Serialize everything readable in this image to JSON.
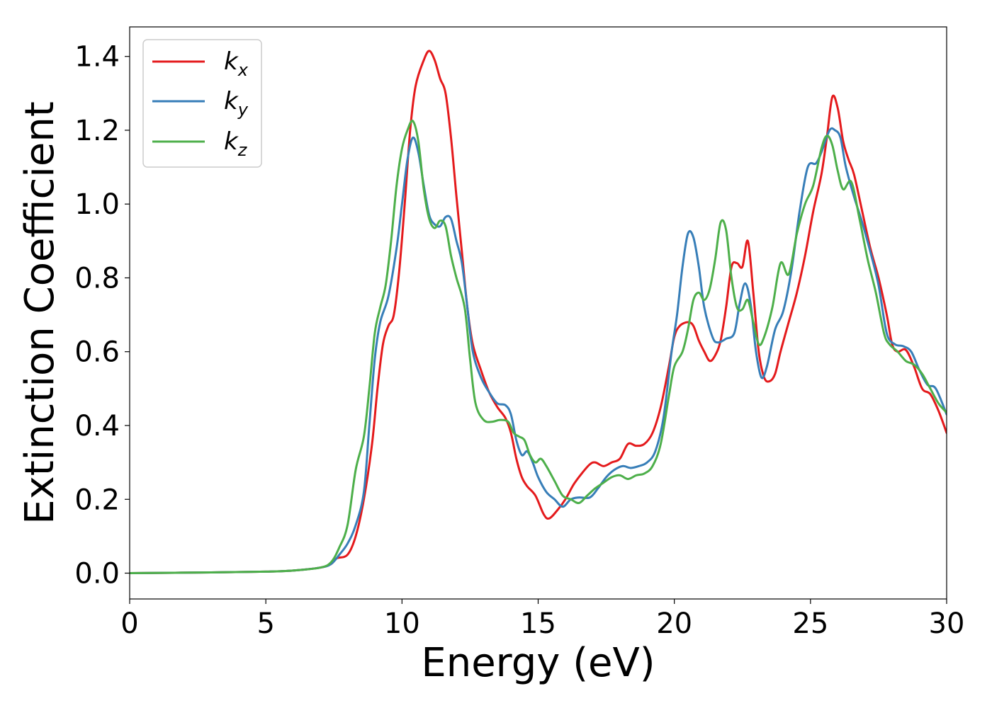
{
  "chart_data": {
    "type": "line",
    "title": "",
    "xlabel": "Energy (eV)",
    "ylabel": "Extinction Coefficient",
    "xlim": [
      0,
      30
    ],
    "ylim": [
      -0.07,
      1.48
    ],
    "xticks": [
      0,
      5,
      10,
      15,
      20,
      25,
      30
    ],
    "yticks": [
      0.0,
      0.2,
      0.4,
      0.6,
      0.8,
      1.0,
      1.2,
      1.4
    ],
    "xtick_labels": [
      "0",
      "5",
      "10",
      "15",
      "20",
      "25",
      "30"
    ],
    "ytick_labels": [
      "0.0",
      "0.2",
      "0.4",
      "0.6",
      "0.8",
      "1.0",
      "1.2",
      "1.4"
    ],
    "grid": false,
    "legend_position": "top-left",
    "series": [
      {
        "name": "k_x",
        "label_base": "k",
        "label_sub": "x",
        "color": "#e41a1c",
        "points": [
          [
            0,
            0
          ],
          [
            3,
            0.002
          ],
          [
            5,
            0.004
          ],
          [
            6,
            0.007
          ],
          [
            7,
            0.015
          ],
          [
            7.4,
            0.025
          ],
          [
            7.6,
            0.04
          ],
          [
            8.0,
            0.05
          ],
          [
            8.3,
            0.1
          ],
          [
            8.6,
            0.2
          ],
          [
            8.9,
            0.35
          ],
          [
            9.1,
            0.5
          ],
          [
            9.3,
            0.62
          ],
          [
            9.5,
            0.67
          ],
          [
            9.7,
            0.7
          ],
          [
            9.9,
            0.82
          ],
          [
            10.1,
            1.0
          ],
          [
            10.3,
            1.2
          ],
          [
            10.5,
            1.32
          ],
          [
            10.8,
            1.39
          ],
          [
            11.0,
            1.415
          ],
          [
            11.2,
            1.39
          ],
          [
            11.4,
            1.34
          ],
          [
            11.6,
            1.3
          ],
          [
            11.8,
            1.18
          ],
          [
            12.0,
            1.02
          ],
          [
            12.2,
            0.87
          ],
          [
            12.4,
            0.72
          ],
          [
            12.6,
            0.62
          ],
          [
            12.9,
            0.55
          ],
          [
            13.2,
            0.49
          ],
          [
            13.5,
            0.45
          ],
          [
            13.8,
            0.42
          ],
          [
            14.0,
            0.38
          ],
          [
            14.2,
            0.31
          ],
          [
            14.4,
            0.26
          ],
          [
            14.6,
            0.235
          ],
          [
            14.9,
            0.21
          ],
          [
            15.2,
            0.16
          ],
          [
            15.4,
            0.148
          ],
          [
            15.7,
            0.17
          ],
          [
            16.0,
            0.2
          ],
          [
            16.3,
            0.24
          ],
          [
            16.6,
            0.27
          ],
          [
            16.9,
            0.295
          ],
          [
            17.1,
            0.3
          ],
          [
            17.4,
            0.29
          ],
          [
            17.7,
            0.3
          ],
          [
            18.0,
            0.31
          ],
          [
            18.3,
            0.35
          ],
          [
            18.6,
            0.345
          ],
          [
            18.9,
            0.35
          ],
          [
            19.2,
            0.38
          ],
          [
            19.5,
            0.45
          ],
          [
            19.8,
            0.56
          ],
          [
            20.0,
            0.64
          ],
          [
            20.2,
            0.67
          ],
          [
            20.5,
            0.68
          ],
          [
            20.7,
            0.67
          ],
          [
            20.9,
            0.63
          ],
          [
            21.1,
            0.6
          ],
          [
            21.3,
            0.575
          ],
          [
            21.5,
            0.59
          ],
          [
            21.7,
            0.63
          ],
          [
            21.9,
            0.72
          ],
          [
            22.1,
            0.83
          ],
          [
            22.3,
            0.84
          ],
          [
            22.5,
            0.83
          ],
          [
            22.7,
            0.9
          ],
          [
            22.9,
            0.76
          ],
          [
            23.1,
            0.6
          ],
          [
            23.3,
            0.53
          ],
          [
            23.5,
            0.52
          ],
          [
            23.7,
            0.54
          ],
          [
            23.9,
            0.6
          ],
          [
            24.2,
            0.68
          ],
          [
            24.5,
            0.76
          ],
          [
            24.8,
            0.86
          ],
          [
            25.1,
            0.98
          ],
          [
            25.4,
            1.08
          ],
          [
            25.6,
            1.18
          ],
          [
            25.8,
            1.29
          ],
          [
            26.0,
            1.26
          ],
          [
            26.2,
            1.17
          ],
          [
            26.4,
            1.12
          ],
          [
            26.6,
            1.08
          ],
          [
            26.9,
            0.98
          ],
          [
            27.2,
            0.88
          ],
          [
            27.5,
            0.8
          ],
          [
            27.8,
            0.7
          ],
          [
            28.0,
            0.62
          ],
          [
            28.2,
            0.6
          ],
          [
            28.5,
            0.605
          ],
          [
            28.8,
            0.56
          ],
          [
            29.1,
            0.5
          ],
          [
            29.4,
            0.485
          ],
          [
            29.7,
            0.44
          ],
          [
            30.0,
            0.38
          ]
        ]
      },
      {
        "name": "k_y",
        "label_base": "k",
        "label_sub": "y",
        "color": "#377eb8",
        "points": [
          [
            0,
            0
          ],
          [
            3,
            0.002
          ],
          [
            5,
            0.004
          ],
          [
            6,
            0.007
          ],
          [
            7,
            0.015
          ],
          [
            7.4,
            0.025
          ],
          [
            7.7,
            0.05
          ],
          [
            8.0,
            0.08
          ],
          [
            8.3,
            0.13
          ],
          [
            8.6,
            0.22
          ],
          [
            8.8,
            0.4
          ],
          [
            9.0,
            0.58
          ],
          [
            9.2,
            0.68
          ],
          [
            9.5,
            0.75
          ],
          [
            9.8,
            0.88
          ],
          [
            10.0,
            1.0
          ],
          [
            10.2,
            1.12
          ],
          [
            10.4,
            1.18
          ],
          [
            10.6,
            1.14
          ],
          [
            10.8,
            1.05
          ],
          [
            11.0,
            0.97
          ],
          [
            11.2,
            0.945
          ],
          [
            11.4,
            0.94
          ],
          [
            11.6,
            0.965
          ],
          [
            11.8,
            0.96
          ],
          [
            12.0,
            0.9
          ],
          [
            12.2,
            0.84
          ],
          [
            12.4,
            0.72
          ],
          [
            12.6,
            0.6
          ],
          [
            12.9,
            0.53
          ],
          [
            13.2,
            0.49
          ],
          [
            13.5,
            0.46
          ],
          [
            13.8,
            0.455
          ],
          [
            14.0,
            0.43
          ],
          [
            14.2,
            0.36
          ],
          [
            14.4,
            0.32
          ],
          [
            14.6,
            0.33
          ],
          [
            14.8,
            0.3
          ],
          [
            15.0,
            0.26
          ],
          [
            15.3,
            0.22
          ],
          [
            15.6,
            0.2
          ],
          [
            15.9,
            0.18
          ],
          [
            16.2,
            0.2
          ],
          [
            16.5,
            0.205
          ],
          [
            16.9,
            0.205
          ],
          [
            17.2,
            0.23
          ],
          [
            17.5,
            0.26
          ],
          [
            17.8,
            0.28
          ],
          [
            18.1,
            0.29
          ],
          [
            18.4,
            0.285
          ],
          [
            18.7,
            0.29
          ],
          [
            19.0,
            0.3
          ],
          [
            19.3,
            0.33
          ],
          [
            19.6,
            0.42
          ],
          [
            19.9,
            0.6
          ],
          [
            20.1,
            0.7
          ],
          [
            20.3,
            0.83
          ],
          [
            20.5,
            0.92
          ],
          [
            20.7,
            0.91
          ],
          [
            20.9,
            0.83
          ],
          [
            21.1,
            0.72
          ],
          [
            21.4,
            0.64
          ],
          [
            21.6,
            0.625
          ],
          [
            21.9,
            0.635
          ],
          [
            22.2,
            0.65
          ],
          [
            22.4,
            0.73
          ],
          [
            22.6,
            0.785
          ],
          [
            22.8,
            0.73
          ],
          [
            23.0,
            0.6
          ],
          [
            23.2,
            0.53
          ],
          [
            23.4,
            0.56
          ],
          [
            23.7,
            0.66
          ],
          [
            24.0,
            0.71
          ],
          [
            24.3,
            0.82
          ],
          [
            24.6,
            0.98
          ],
          [
            24.9,
            1.1
          ],
          [
            25.2,
            1.11
          ],
          [
            25.4,
            1.14
          ],
          [
            25.7,
            1.2
          ],
          [
            25.9,
            1.2
          ],
          [
            26.1,
            1.18
          ],
          [
            26.3,
            1.1
          ],
          [
            26.6,
            1.02
          ],
          [
            26.9,
            0.95
          ],
          [
            27.2,
            0.87
          ],
          [
            27.5,
            0.78
          ],
          [
            27.8,
            0.65
          ],
          [
            28.1,
            0.62
          ],
          [
            28.4,
            0.615
          ],
          [
            28.7,
            0.6
          ],
          [
            29.0,
            0.55
          ],
          [
            29.3,
            0.51
          ],
          [
            29.6,
            0.5
          ],
          [
            30.0,
            0.43
          ]
        ]
      },
      {
        "name": "k_z",
        "label_base": "k",
        "label_sub": "z",
        "color": "#4daf4a",
        "points": [
          [
            0,
            0
          ],
          [
            3,
            0.002
          ],
          [
            5,
            0.004
          ],
          [
            6,
            0.007
          ],
          [
            7,
            0.015
          ],
          [
            7.4,
            0.03
          ],
          [
            7.7,
            0.07
          ],
          [
            8.0,
            0.13
          ],
          [
            8.3,
            0.28
          ],
          [
            8.6,
            0.37
          ],
          [
            8.8,
            0.5
          ],
          [
            9.0,
            0.65
          ],
          [
            9.2,
            0.72
          ],
          [
            9.4,
            0.78
          ],
          [
            9.6,
            0.9
          ],
          [
            9.8,
            1.05
          ],
          [
            10.0,
            1.15
          ],
          [
            10.2,
            1.2
          ],
          [
            10.4,
            1.225
          ],
          [
            10.6,
            1.17
          ],
          [
            10.8,
            1.04
          ],
          [
            11.0,
            0.96
          ],
          [
            11.2,
            0.935
          ],
          [
            11.4,
            0.955
          ],
          [
            11.6,
            0.94
          ],
          [
            11.8,
            0.86
          ],
          [
            12.0,
            0.8
          ],
          [
            12.3,
            0.72
          ],
          [
            12.5,
            0.58
          ],
          [
            12.7,
            0.46
          ],
          [
            13.0,
            0.415
          ],
          [
            13.3,
            0.41
          ],
          [
            13.6,
            0.415
          ],
          [
            13.9,
            0.41
          ],
          [
            14.1,
            0.38
          ],
          [
            14.3,
            0.37
          ],
          [
            14.5,
            0.36
          ],
          [
            14.7,
            0.32
          ],
          [
            14.9,
            0.3
          ],
          [
            15.1,
            0.31
          ],
          [
            15.3,
            0.29
          ],
          [
            15.6,
            0.25
          ],
          [
            15.9,
            0.21
          ],
          [
            16.2,
            0.2
          ],
          [
            16.5,
            0.19
          ],
          [
            16.8,
            0.21
          ],
          [
            17.1,
            0.23
          ],
          [
            17.4,
            0.245
          ],
          [
            17.7,
            0.26
          ],
          [
            18.0,
            0.265
          ],
          [
            18.3,
            0.255
          ],
          [
            18.6,
            0.265
          ],
          [
            18.9,
            0.27
          ],
          [
            19.2,
            0.29
          ],
          [
            19.5,
            0.35
          ],
          [
            19.8,
            0.48
          ],
          [
            20.0,
            0.56
          ],
          [
            20.3,
            0.6
          ],
          [
            20.5,
            0.66
          ],
          [
            20.7,
            0.74
          ],
          [
            20.9,
            0.76
          ],
          [
            21.1,
            0.74
          ],
          [
            21.3,
            0.77
          ],
          [
            21.5,
            0.85
          ],
          [
            21.7,
            0.95
          ],
          [
            21.9,
            0.93
          ],
          [
            22.1,
            0.8
          ],
          [
            22.3,
            0.72
          ],
          [
            22.5,
            0.715
          ],
          [
            22.7,
            0.74
          ],
          [
            22.9,
            0.68
          ],
          [
            23.1,
            0.62
          ],
          [
            23.3,
            0.64
          ],
          [
            23.6,
            0.72
          ],
          [
            23.9,
            0.84
          ],
          [
            24.2,
            0.81
          ],
          [
            24.5,
            0.92
          ],
          [
            24.8,
            1.0
          ],
          [
            25.1,
            1.05
          ],
          [
            25.4,
            1.15
          ],
          [
            25.6,
            1.185
          ],
          [
            25.8,
            1.16
          ],
          [
            26.0,
            1.09
          ],
          [
            26.2,
            1.04
          ],
          [
            26.5,
            1.06
          ],
          [
            26.8,
            0.96
          ],
          [
            27.1,
            0.85
          ],
          [
            27.4,
            0.76
          ],
          [
            27.7,
            0.65
          ],
          [
            27.9,
            0.62
          ],
          [
            28.2,
            0.6
          ],
          [
            28.5,
            0.575
          ],
          [
            28.8,
            0.565
          ],
          [
            29.1,
            0.54
          ],
          [
            29.4,
            0.5
          ],
          [
            29.7,
            0.46
          ],
          [
            30.0,
            0.435
          ]
        ]
      }
    ]
  }
}
